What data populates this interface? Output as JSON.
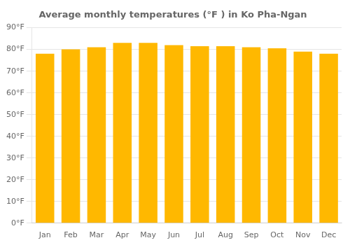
{
  "chart_data": {
    "type": "bar",
    "title": "Average monthly temperatures (°F ) in Ko Pha-Ngan",
    "categories": [
      "Jan",
      "Feb",
      "Mar",
      "Apr",
      "May",
      "Jun",
      "Jul",
      "Aug",
      "Sep",
      "Oct",
      "Nov",
      "Dec"
    ],
    "values": [
      78,
      80,
      81,
      83,
      83,
      82,
      81.5,
      81.5,
      81,
      80.5,
      79,
      78
    ],
    "color": "#FFB800",
    "ylim": [
      0,
      90
    ],
    "yticks": [
      {
        "value": 0,
        "label": "0°F"
      },
      {
        "value": 10,
        "label": "10°F"
      },
      {
        "value": 20,
        "label": "20°F"
      },
      {
        "value": 30,
        "label": "30°F"
      },
      {
        "value": 40,
        "label": "40°F"
      },
      {
        "value": 50,
        "label": "50°F"
      },
      {
        "value": 60,
        "label": "60°F"
      },
      {
        "value": 70,
        "label": "70°F"
      },
      {
        "value": 80,
        "label": "80°F"
      },
      {
        "value": 90,
        "label": "90°F"
      }
    ],
    "grid": true
  }
}
